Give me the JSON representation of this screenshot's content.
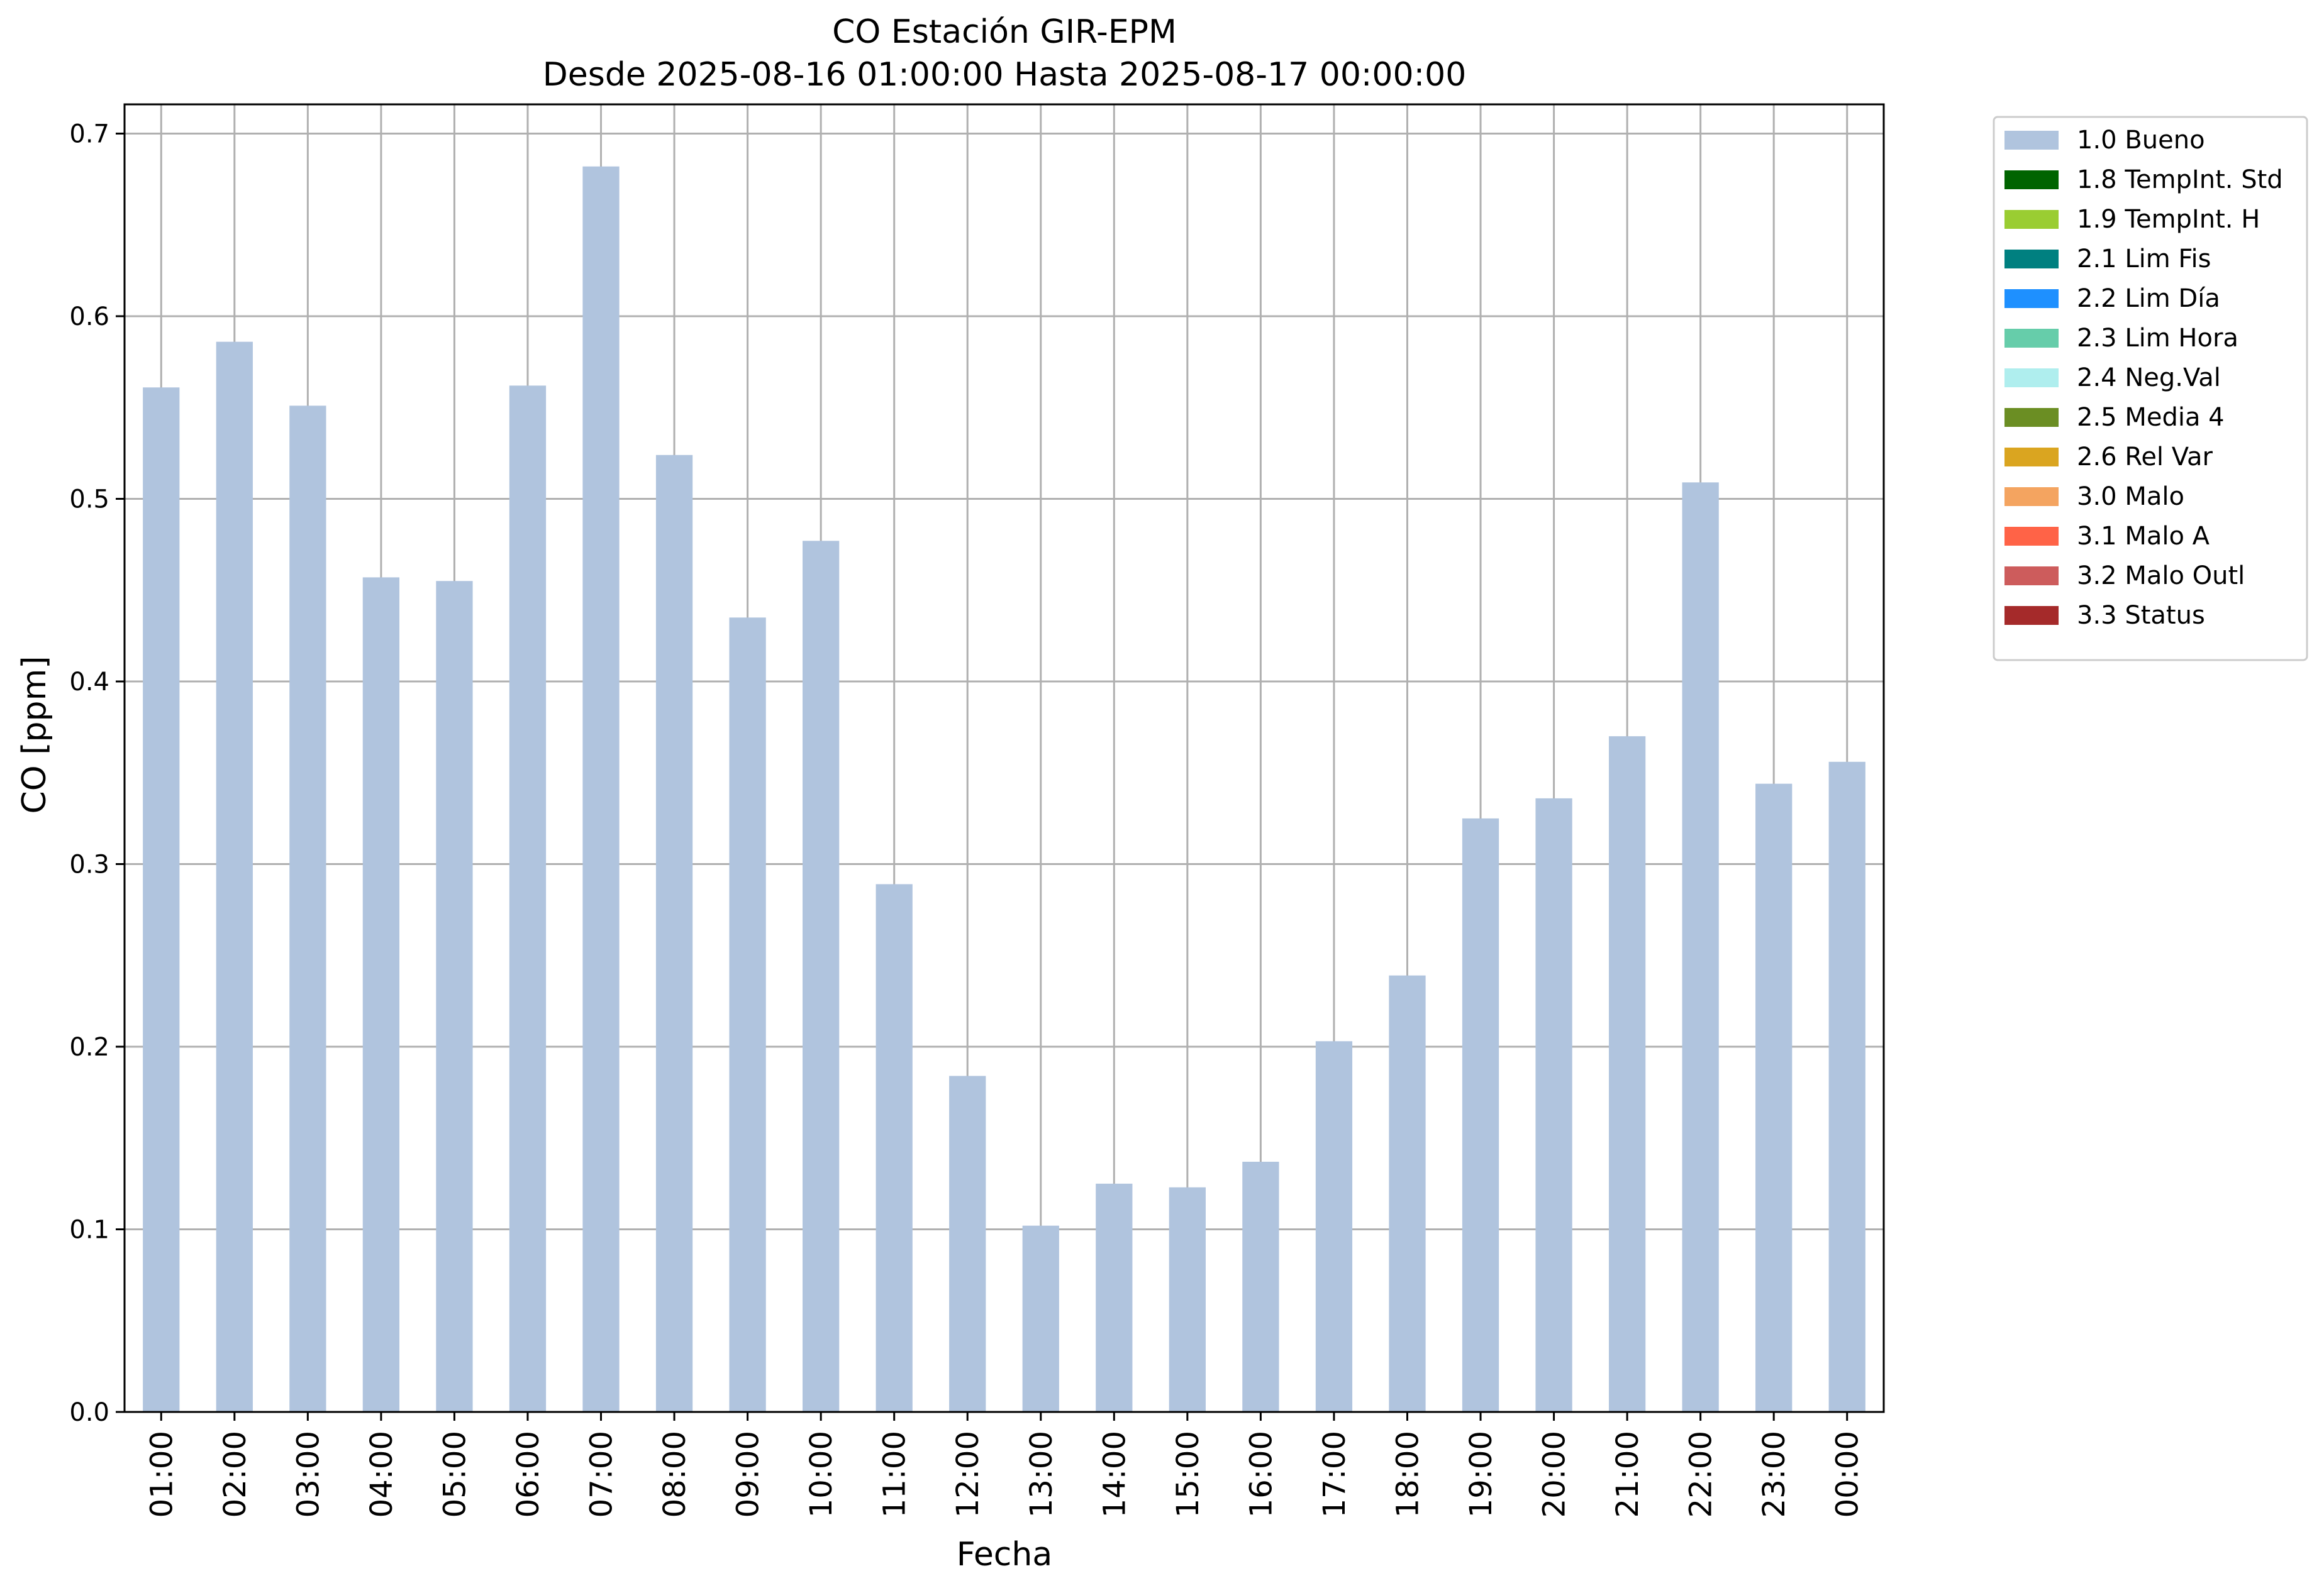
{
  "chart_data": {
    "type": "bar",
    "title": "CO Estación GIR-EPM",
    "subtitle": "Desde 2025-08-16 01:00:00 Hasta 2025-08-17 00:00:00",
    "xlabel": "Fecha",
    "ylabel": "CO [ppm]",
    "ylim": [
      0,
      0.716
    ],
    "yticks": [
      "0.0",
      "0.1",
      "0.2",
      "0.3",
      "0.4",
      "0.5",
      "0.6",
      "0.7"
    ],
    "grid": true,
    "legend_position": "outside-top-right",
    "categories": [
      "01:00",
      "02:00",
      "03:00",
      "04:00",
      "05:00",
      "06:00",
      "07:00",
      "08:00",
      "09:00",
      "10:00",
      "11:00",
      "12:00",
      "13:00",
      "14:00",
      "15:00",
      "16:00",
      "17:00",
      "18:00",
      "19:00",
      "20:00",
      "21:00",
      "22:00",
      "23:00",
      "00:00"
    ],
    "series": [
      {
        "name": "1.0 Bueno",
        "color": "#b0c4de",
        "values": [
          0.561,
          0.586,
          0.551,
          0.457,
          0.455,
          0.562,
          0.682,
          0.524,
          0.435,
          0.477,
          0.289,
          0.184,
          0.102,
          0.125,
          0.123,
          0.137,
          0.203,
          0.239,
          0.325,
          0.336,
          0.37,
          0.509,
          0.344,
          0.356
        ]
      }
    ],
    "legend": [
      {
        "label": "1.0 Bueno",
        "color": "#b0c4de"
      },
      {
        "label": "1.8 TempInt. Std",
        "color": "#006400"
      },
      {
        "label": "1.9 TempInt. H",
        "color": "#9acd32"
      },
      {
        "label": "2.1 Lim Fis",
        "color": "#008080"
      },
      {
        "label": "2.2 Lim Día",
        "color": "#1e90ff"
      },
      {
        "label": "2.3 Lim Hora",
        "color": "#66cdaa"
      },
      {
        "label": "2.4 Neg.Val",
        "color": "#afeeee"
      },
      {
        "label": "2.5 Media 4",
        "color": "#6b8e23"
      },
      {
        "label": "2.6 Rel Var",
        "color": "#daa520"
      },
      {
        "label": "3.0 Malo",
        "color": "#f4a460"
      },
      {
        "label": "3.1 Malo A",
        "color": "#ff6347"
      },
      {
        "label": "3.2 Malo Outl",
        "color": "#cd5c5c"
      },
      {
        "label": "3.3 Status",
        "color": "#a52a2a"
      }
    ]
  }
}
